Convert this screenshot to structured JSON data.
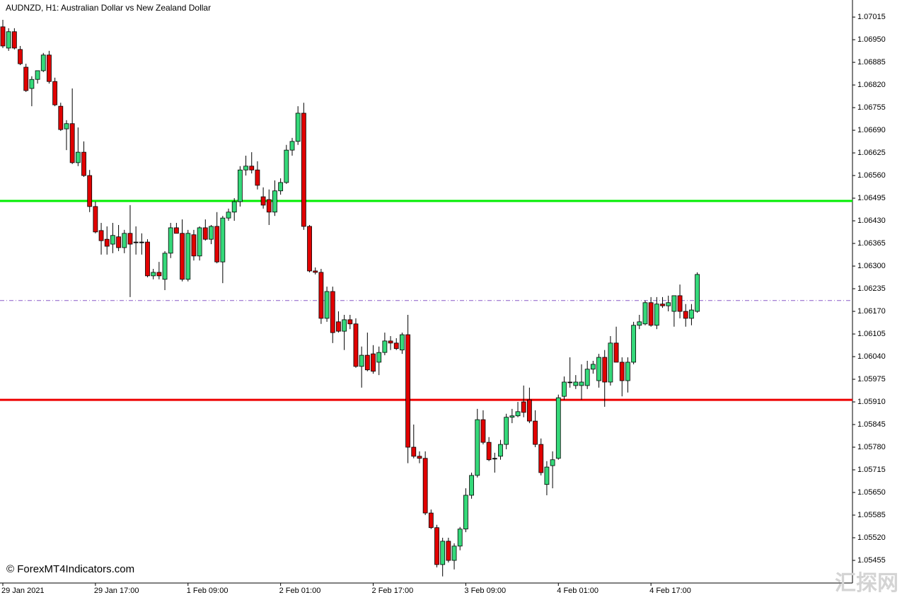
{
  "chart_data": {
    "type": "candlestick",
    "title": "AUDNZD, H1:  Australian Dollar vs New Zealand Dollar",
    "watermark": "© ForexMT4Indicators.com",
    "logo": "汇探网",
    "up_color": "#35d97a",
    "down_color": "#e10000",
    "ylim": [
      1.0539,
      1.07064
    ],
    "yticks": [
      1.07015,
      {
        "value": 1.0695,
        "label": "1.06950"
      },
      1.06885,
      {
        "value": 1.0682,
        "label": "1.06820"
      },
      1.06755,
      {
        "value": 1.0669,
        "label": "1.06690"
      },
      1.06625,
      {
        "value": 1.0656,
        "label": "1.06560"
      },
      1.06495,
      {
        "value": 1.0643,
        "label": "1.06430"
      },
      1.06365,
      {
        "value": 1.063,
        "label": "1.06300"
      },
      1.06235,
      {
        "value": 1.0617,
        "label": "1.06170"
      },
      1.06105,
      {
        "value": 1.0604,
        "label": "1.06040"
      },
      1.05975,
      {
        "value": 1.0591,
        "label": "1.05910"
      },
      1.05845,
      {
        "value": 1.0578,
        "label": "1.05780"
      },
      1.05715,
      {
        "value": 1.0565,
        "label": "1.05650"
      },
      1.05585,
      {
        "value": 1.0552,
        "label": "1.05520"
      },
      1.05455
    ],
    "levels": [
      {
        "value": 1.06487,
        "color": "#00ee00",
        "style": "solid"
      },
      {
        "value": 1.05916,
        "color": "#ee0000",
        "style": "solid"
      },
      {
        "value": 1.06201,
        "color": "#8a5cc8",
        "style": "dashed"
      }
    ],
    "categories": [
      "29 Jan 2021",
      null,
      null,
      null,
      null,
      null,
      null,
      null,
      null,
      null,
      null,
      null,
      null,
      null,
      null,
      null,
      "29 Jan 17:00",
      null,
      null,
      null,
      null,
      null,
      null,
      null,
      null,
      null,
      null,
      null,
      null,
      null,
      null,
      null,
      "1 Feb 09:00",
      null,
      null,
      null,
      null,
      null,
      null,
      null,
      null,
      null,
      null,
      null,
      null,
      null,
      null,
      null,
      "2 Feb 01:00",
      null,
      null,
      null,
      null,
      null,
      null,
      null,
      null,
      null,
      null,
      null,
      null,
      null,
      null,
      null,
      "2 Feb 17:00",
      null,
      null,
      null,
      null,
      null,
      null,
      null,
      null,
      null,
      null,
      null,
      null,
      null,
      null,
      null,
      "3 Feb 09:00",
      null,
      null,
      null,
      null,
      null,
      null,
      null,
      null,
      null,
      null,
      null,
      null,
      null,
      null,
      null,
      "4 Feb 01:00",
      null,
      null,
      null,
      null,
      null,
      null,
      null,
      null,
      null,
      null,
      null,
      null,
      null,
      null,
      null,
      "4 Feb 17:00",
      null,
      null,
      null,
      null,
      null,
      null,
      null,
      null
    ],
    "open": [
      1.06987,
      1.06926,
      1.06973,
      1.06922,
      1.06871,
      1.0681,
      1.06836,
      1.06861,
      1.06906,
      1.0683,
      1.06759,
      1.06694,
      1.06709,
      1.06597,
      1.06627,
      1.0656,
      1.06471,
      1.06402,
      1.06377,
      1.06363,
      1.06384,
      1.06353,
      1.06394,
      1.06369,
      1.06369,
      1.06369,
      1.06272,
      1.06282,
      1.06262,
      1.06337,
      1.0641,
      1.06394,
      1.06262,
      1.0639,
      1.06329,
      1.0641,
      1.06377,
      1.06414,
      1.06312,
      1.06438,
      1.06455,
      1.06485,
      1.06576,
      1.06587,
      1.06576,
      1.06499,
      1.06491,
      1.06455,
      1.06516,
      1.0654,
      1.06633,
      1.06658,
      1.06739,
      1.06414,
      1.06286,
      1.06282,
      1.0615,
      1.06227,
      1.0614,
      1.06113,
      1.06146,
      1.06134,
      1.06012,
      1.06044,
      1.06048,
      1.06024,
      1.06052,
      1.06085,
      1.06079,
      1.06059,
      1.06103,
      1.0578,
      1.05754,
      1.05748,
      1.05591,
      1.05549,
      1.05443,
      1.0551,
      1.05455,
      1.05496,
      1.05545,
      1.05642,
      1.05699,
      1.05859,
      1.05794,
      1.05748,
      1.05754,
      1.05788,
      1.05866,
      1.0587,
      1.0591,
      1.05916,
      1.05855,
      1.05788,
      1.05673,
      1.05727,
      1.05748,
      1.05926,
      1.05967,
      1.05957,
      1.05957,
      1.05957,
      1.06004,
      1.05971,
      1.06038,
      1.05967,
      1.06079,
      1.06024,
      1.05971,
      1.06024,
      1.0613,
      1.06134,
      1.06195,
      1.0613,
      1.06191,
      1.06186,
      1.0617,
      1.06215,
      1.0617,
      1.0615,
      1.0617
    ],
    "high": [
      1.07007,
      1.06983,
      1.06983,
      1.06932,
      1.06881,
      1.06845,
      1.06861,
      1.06912,
      1.06918,
      1.06841,
      1.06769,
      1.06719,
      1.0681,
      1.06698,
      1.06658,
      1.06576,
      1.06485,
      1.06424,
      1.06414,
      1.06424,
      1.06418,
      1.06404,
      1.06475,
      1.06414,
      1.06394,
      1.06377,
      1.06292,
      1.06312,
      1.06343,
      1.06424,
      1.06424,
      1.06434,
      1.06404,
      1.06404,
      1.06414,
      1.06434,
      1.06418,
      1.06455,
      1.06444,
      1.06465,
      1.06495,
      1.06587,
      1.06617,
      1.06627,
      1.06601,
      1.06526,
      1.0652,
      1.06546,
      1.06552,
      1.06648,
      1.06668,
      1.06759,
      1.06769,
      1.06418,
      1.06296,
      1.06292,
      1.06241,
      1.06241,
      1.0617,
      1.0616,
      1.0616,
      1.0615,
      1.06069,
      1.06109,
      1.06073,
      1.06069,
      1.06109,
      1.06099,
      1.06093,
      1.06109,
      1.0616,
      1.05845,
      1.05768,
      1.05768,
      1.05601,
      1.05557,
      1.0552,
      1.0552,
      1.05504,
      1.05551,
      1.05662,
      1.05707,
      1.0589,
      1.05886,
      1.05809,
      1.05764,
      1.05801,
      1.05876,
      1.0589,
      1.0591,
      1.05957,
      1.05951,
      1.05886,
      1.05805,
      1.0574,
      1.05768,
      1.05931,
      1.05983,
      1.06038,
      1.05987,
      1.06018,
      1.06028,
      1.06028,
      1.06048,
      1.06059,
      1.06099,
      1.06126,
      1.06038,
      1.06038,
      1.0614,
      1.0616,
      1.06201,
      1.06211,
      1.06211,
      1.06211,
      1.06215,
      1.06215,
      1.06247,
      1.06191,
      1.06191,
      1.06282
    ],
    "low": [
      1.06926,
      1.06918,
      1.06922,
      1.06877,
      1.068,
      1.06759,
      1.06824,
      1.06857,
      1.06824,
      1.06759,
      1.06688,
      1.06633,
      1.06593,
      1.06587,
      1.06556,
      1.06455,
      1.06394,
      1.06333,
      1.06333,
      1.06337,
      1.06343,
      1.06337,
      1.06211,
      1.06333,
      1.06333,
      1.06268,
      1.06262,
      1.06262,
      1.06231,
      1.06323,
      1.06394,
      1.06256,
      1.06256,
      1.06316,
      1.06316,
      1.06373,
      1.06363,
      1.06308,
      1.06251,
      1.0643,
      1.0643,
      1.06471,
      1.0656,
      1.06566,
      1.0652,
      1.06465,
      1.06418,
      1.06444,
      1.06505,
      1.06536,
      1.06617,
      1.06648,
      1.06404,
      1.06282,
      1.06276,
      1.06134,
      1.0614,
      1.06079,
      1.06109,
      1.06059,
      1.06119,
      1.06008,
      1.05951,
      1.05998,
      1.05991,
      1.05987,
      1.06044,
      1.06059,
      1.06059,
      1.06048,
      1.05734,
      1.05748,
      1.05734,
      1.05585,
      1.05545,
      1.05435,
      1.05409,
      1.05449,
      1.05429,
      1.05484,
      1.05536,
      1.05632,
      1.05693,
      1.05788,
      1.0574,
      1.05707,
      1.05744,
      1.05774,
      1.05849,
      1.05866,
      1.05866,
      1.05849,
      1.0578,
      1.05699,
      1.05642,
      1.05662,
      1.05744,
      1.05916,
      1.05951,
      1.05947,
      1.05916,
      1.05947,
      1.05991,
      1.05951,
      1.05896,
      1.05957,
      1.06024,
      1.05926,
      1.05937,
      1.06018,
      1.06119,
      1.0613,
      1.06126,
      1.06119,
      1.0618,
      1.0617,
      1.06126,
      1.0615,
      1.06126,
      1.0613,
      1.06166
    ],
    "close": [
      1.06932,
      1.06973,
      1.06926,
      1.06881,
      1.06804,
      1.06836,
      1.06861,
      1.06906,
      1.0683,
      1.06763,
      1.06692,
      1.06709,
      1.06597,
      1.06627,
      1.0656,
      1.06471,
      1.06398,
      1.06373,
      1.06357,
      1.06388,
      1.06353,
      1.06394,
      1.06363,
      1.06369,
      1.06369,
      1.06272,
      1.06282,
      1.06272,
      1.06337,
      1.0641,
      1.06394,
      1.06262,
      1.06394,
      1.06329,
      1.0641,
      1.06377,
      1.06414,
      1.06312,
      1.06438,
      1.06455,
      1.06485,
      1.06576,
      1.06587,
      1.06576,
      1.06532,
      1.06475,
      1.06455,
      1.06516,
      1.0654,
      1.06633,
      1.06658,
      1.06739,
      1.06414,
      1.06286,
      1.06282,
      1.0615,
      1.06227,
      1.06109,
      1.06113,
      1.06146,
      1.06134,
      1.06012,
      1.06044,
      1.06002,
      1.05998,
      1.06052,
      1.06085,
      1.06079,
      1.06063,
      1.06103,
      1.0578,
      1.05754,
      1.05748,
      1.05591,
      1.05549,
      1.05443,
      1.0551,
      1.05455,
      1.05496,
      1.05545,
      1.05642,
      1.05699,
      1.05859,
      1.05794,
      1.05744,
      1.05748,
      1.05788,
      1.05866,
      1.0587,
      1.05882,
      1.0588,
      1.05855,
      1.05788,
      1.05707,
      1.05723,
      1.05744,
      1.05922,
      1.05967,
      1.05967,
      1.05967,
      1.05967,
      1.06004,
      1.06018,
      1.06038,
      1.05967,
      1.06079,
      1.06024,
      1.05971,
      1.06024,
      1.0613,
      1.0614,
      1.06195,
      1.0613,
      1.06191,
      1.06186,
      1.06195,
      1.06215,
      1.0617,
      1.0615,
      1.06174,
      1.06276
    ]
  }
}
